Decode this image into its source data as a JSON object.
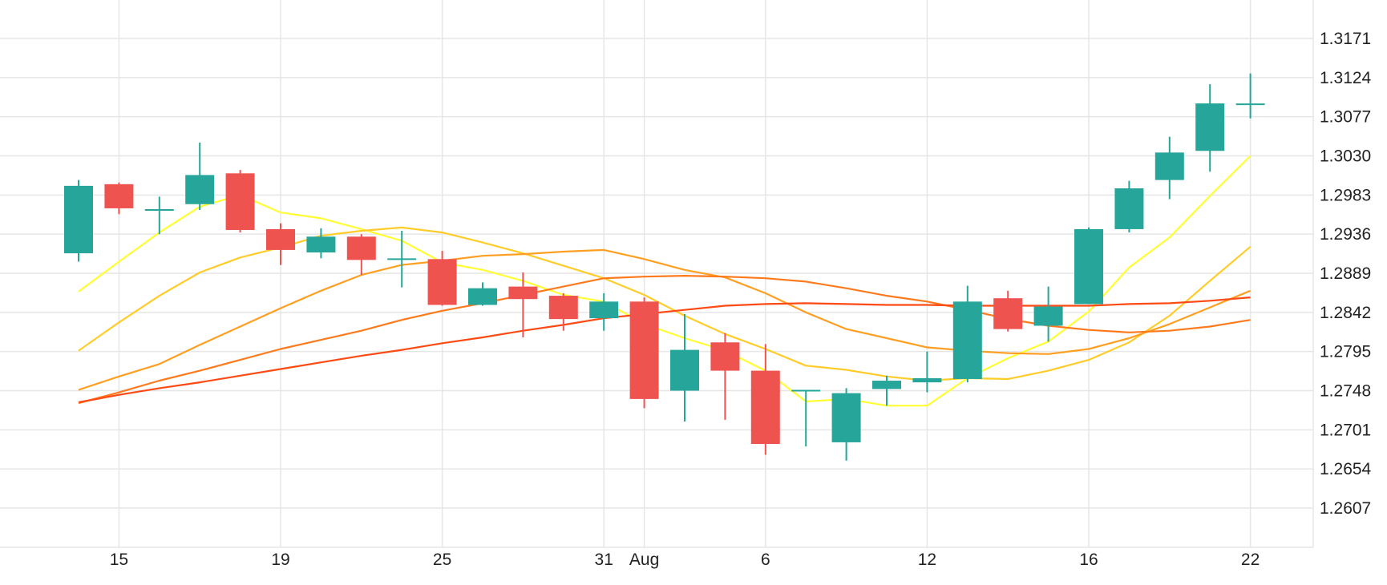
{
  "chart_data": {
    "type": "candlestick",
    "title": "",
    "xlabel": "",
    "ylabel": "",
    "ylim": [
      1.256,
      1.3218
    ],
    "grid": true,
    "y_ticks": [
      "1.3171",
      "1.3124",
      "1.3077",
      "1.3030",
      "1.2983",
      "1.2936",
      "1.2889",
      "1.2842",
      "1.2795",
      "1.2748",
      "1.2701",
      "1.2654",
      "1.2607"
    ],
    "x_ticks": [
      {
        "label": "15",
        "index": 1
      },
      {
        "label": "19",
        "index": 5
      },
      {
        "label": "25",
        "index": 9
      },
      {
        "label": "31",
        "index": 13
      },
      {
        "label": "Aug",
        "index": 14
      },
      {
        "label": "6",
        "index": 17
      },
      {
        "label": "12",
        "index": 21
      },
      {
        "label": "16",
        "index": 25
      },
      {
        "label": "22",
        "index": 29
      }
    ],
    "candles": [
      {
        "open": 1.2913,
        "high": 1.3001,
        "low": 1.2903,
        "close": 1.2994
      },
      {
        "open": 1.2996,
        "high": 1.2998,
        "low": 1.296,
        "close": 1.2967
      },
      {
        "open": 1.2965,
        "high": 1.2981,
        "low": 1.2936,
        "close": 1.2965
      },
      {
        "open": 1.2972,
        "high": 1.3046,
        "low": 1.2965,
        "close": 1.3007
      },
      {
        "open": 1.3009,
        "high": 1.3013,
        "low": 1.2938,
        "close": 1.2941
      },
      {
        "open": 1.2942,
        "high": 1.2949,
        "low": 1.2899,
        "close": 1.2917
      },
      {
        "open": 1.2914,
        "high": 1.2943,
        "low": 1.2907,
        "close": 1.2933
      },
      {
        "open": 1.2933,
        "high": 1.2936,
        "low": 1.2887,
        "close": 1.2905
      },
      {
        "open": 1.2906,
        "high": 1.294,
        "low": 1.2872,
        "close": 1.2906
      },
      {
        "open": 1.2906,
        "high": 1.2916,
        "low": 1.285,
        "close": 1.2851
      },
      {
        "open": 1.2851,
        "high": 1.2878,
        "low": 1.285,
        "close": 1.2871
      },
      {
        "open": 1.2873,
        "high": 1.289,
        "low": 1.2812,
        "close": 1.2858
      },
      {
        "open": 1.2862,
        "high": 1.2865,
        "low": 1.282,
        "close": 1.2834
      },
      {
        "open": 1.2835,
        "high": 1.2865,
        "low": 1.282,
        "close": 1.2855
      },
      {
        "open": 1.2855,
        "high": 1.286,
        "low": 1.2727,
        "close": 1.2738
      },
      {
        "open": 1.2748,
        "high": 1.284,
        "low": 1.2711,
        "close": 1.2797
      },
      {
        "open": 1.2806,
        "high": 1.2817,
        "low": 1.2713,
        "close": 1.2772
      },
      {
        "open": 1.2772,
        "high": 1.2804,
        "low": 1.2671,
        "close": 1.2684
      },
      {
        "open": 1.2748,
        "high": 1.2748,
        "low": 1.2681,
        "close": 1.2748
      },
      {
        "open": 1.2686,
        "high": 1.2751,
        "low": 1.2664,
        "close": 1.2745
      },
      {
        "open": 1.275,
        "high": 1.2766,
        "low": 1.273,
        "close": 1.276
      },
      {
        "open": 1.2758,
        "high": 1.2795,
        "low": 1.2746,
        "close": 1.2763
      },
      {
        "open": 1.2762,
        "high": 1.2874,
        "low": 1.2758,
        "close": 1.2855
      },
      {
        "open": 1.2859,
        "high": 1.2868,
        "low": 1.2819,
        "close": 1.2822
      },
      {
        "open": 1.2826,
        "high": 1.2873,
        "low": 1.2807,
        "close": 1.2849
      },
      {
        "open": 1.2852,
        "high": 1.2944,
        "low": 1.2852,
        "close": 1.2942
      },
      {
        "open": 1.2942,
        "high": 1.3,
        "low": 1.2938,
        "close": 1.2991
      },
      {
        "open": 1.3001,
        "high": 1.3053,
        "low": 1.2978,
        "close": 1.3034
      },
      {
        "open": 1.3036,
        "high": 1.3116,
        "low": 1.3011,
        "close": 1.3093
      },
      {
        "open": 1.3092,
        "high": 1.3129,
        "low": 1.3075,
        "close": 1.3092
      }
    ],
    "moving_averages": [
      {
        "color": "#ffff33",
        "values": [
          1.2867,
          1.2903,
          1.2938,
          1.2969,
          1.2983,
          1.2962,
          1.2955,
          1.2942,
          1.2928,
          1.2902,
          1.2893,
          1.288,
          1.2863,
          1.2855,
          1.2828,
          1.2811,
          1.2796,
          1.2772,
          1.2735,
          1.2738,
          1.273,
          1.273,
          1.2763,
          1.2787,
          1.2807,
          1.2843,
          1.2896,
          1.2932,
          1.2982,
          1.303
        ]
      },
      {
        "color": "#ffcc29",
        "values": [
          1.2796,
          1.283,
          1.2862,
          1.289,
          1.2908,
          1.292,
          1.2934,
          1.294,
          1.2944,
          1.2938,
          1.2926,
          1.2913,
          1.2898,
          1.2883,
          1.2863,
          1.2838,
          1.2816,
          1.2798,
          1.2778,
          1.2773,
          1.2765,
          1.276,
          1.2763,
          1.2762,
          1.2772,
          1.2785,
          1.2806,
          1.2838,
          1.288,
          1.2921
        ]
      },
      {
        "color": "#ff9f22",
        "values": [
          1.2749,
          1.2765,
          1.278,
          1.2803,
          1.2825,
          1.2847,
          1.2868,
          1.2887,
          1.2899,
          1.2904,
          1.291,
          1.2912,
          1.2915,
          1.2917,
          1.2906,
          1.2893,
          1.2884,
          1.2865,
          1.2842,
          1.2822,
          1.2811,
          1.28,
          1.2796,
          1.2793,
          1.2792,
          1.2798,
          1.2811,
          1.2828,
          1.2848,
          1.2868
        ]
      },
      {
        "color": "#ff7a1c",
        "values": [
          1.2733,
          1.2746,
          1.276,
          1.2772,
          1.2785,
          1.2798,
          1.2809,
          1.282,
          1.2833,
          1.2844,
          1.2853,
          1.2863,
          1.2873,
          1.2883,
          1.2885,
          1.2886,
          1.2885,
          1.2883,
          1.2879,
          1.2871,
          1.2862,
          1.2855,
          1.2845,
          1.2834,
          1.2826,
          1.2821,
          1.2818,
          1.282,
          1.2825,
          1.2833
        ]
      },
      {
        "color": "#ff4a14",
        "values": [
          1.2734,
          1.2743,
          1.2751,
          1.2758,
          1.2766,
          1.2774,
          1.2782,
          1.279,
          1.2797,
          1.2805,
          1.2812,
          1.282,
          1.2827,
          1.2835,
          1.284,
          1.2845,
          1.285,
          1.2852,
          1.2853,
          1.2852,
          1.2851,
          1.2851,
          1.285,
          1.285,
          1.285,
          1.285,
          1.2852,
          1.2853,
          1.2856,
          1.286
        ]
      }
    ],
    "colors": {
      "up": "#26a69a",
      "down": "#ef5350",
      "grid": "#e6e6e6",
      "text": "#222222"
    }
  }
}
